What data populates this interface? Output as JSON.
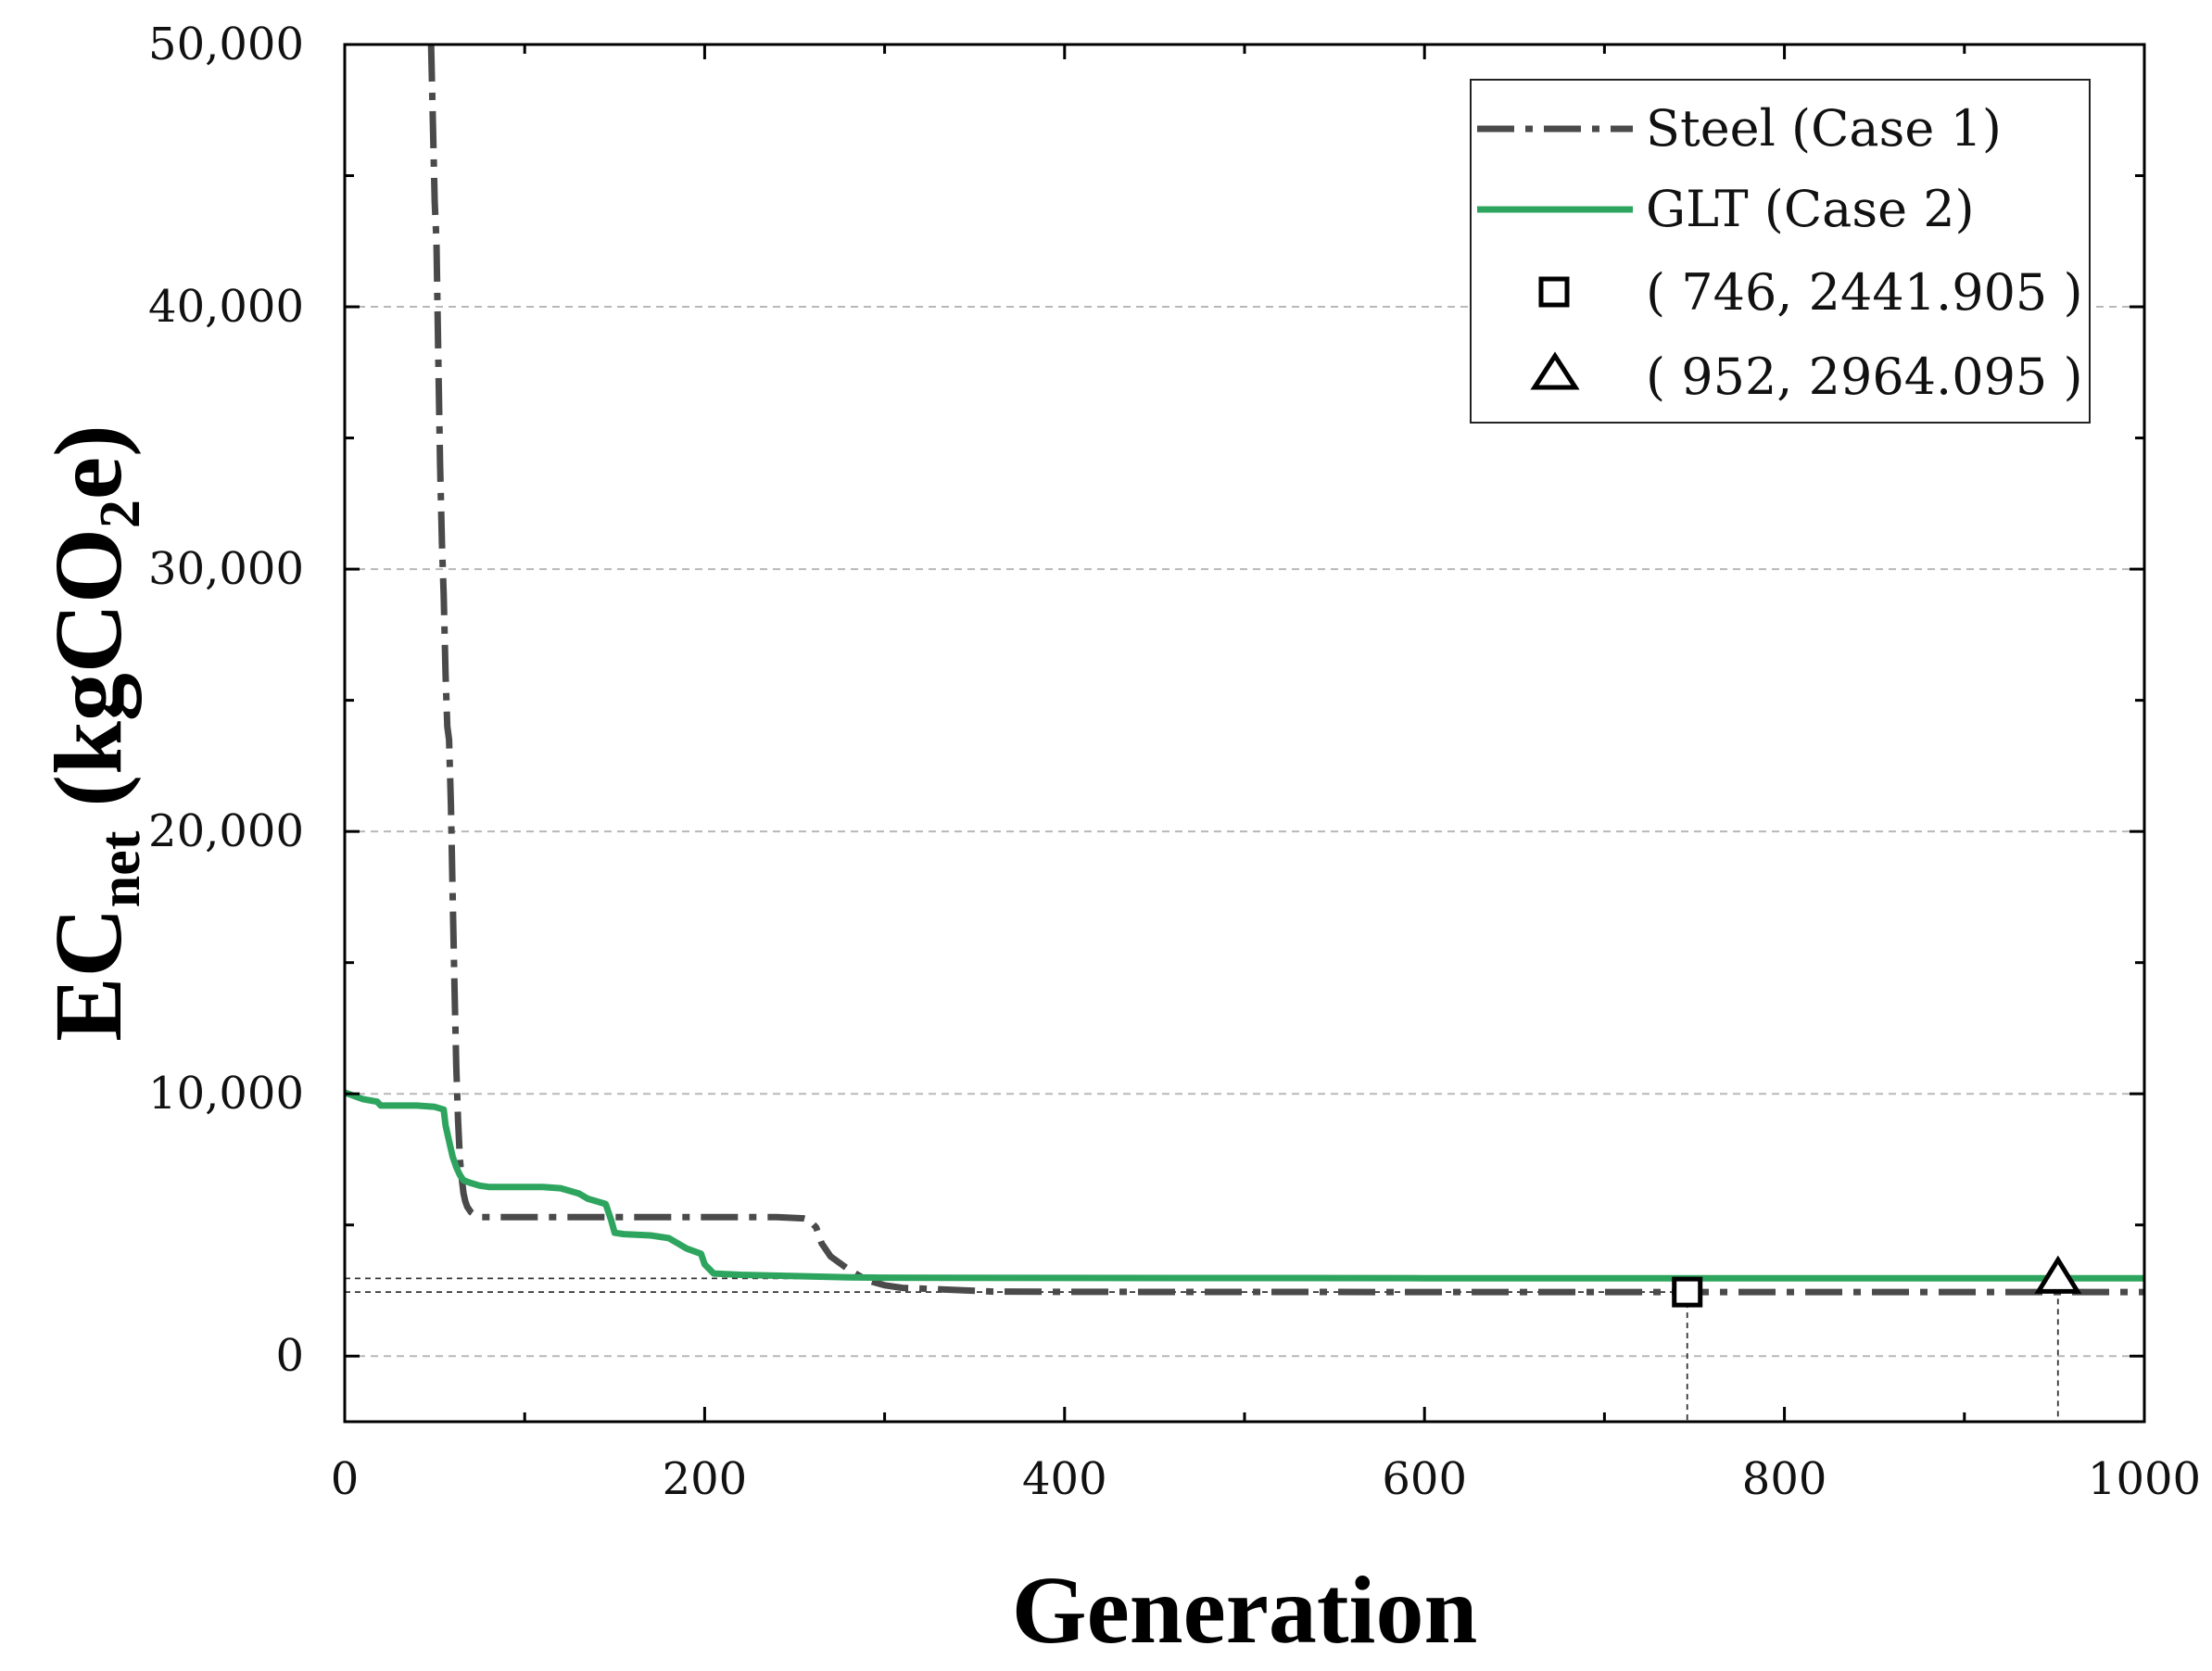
{
  "chart_data": {
    "type": "line",
    "xlabel": "Generation",
    "ylabel_main": "EC",
    "ylabel_sub": "net",
    "ylabel_unit_pre": " (kgCO",
    "ylabel_unit_sub": "2",
    "ylabel_unit_post": "e)",
    "xlim": [
      0,
      1000
    ],
    "ylim": [
      -2500,
      50000
    ],
    "x_ticks": [
      0,
      200,
      400,
      600,
      800,
      1000
    ],
    "x_tick_labels": [
      "0",
      "200",
      "400",
      "600",
      "800",
      "1000"
    ],
    "y_ticks": [
      0,
      10000,
      20000,
      30000,
      40000,
      50000
    ],
    "y_tick_labels": [
      "0",
      "10,000",
      "20,000",
      "30,000",
      "40,000",
      "50,000"
    ],
    "grid": "horizontal-dashed",
    "legend_position": "top-right",
    "series": [
      {
        "name": "Steel (Case 1)",
        "style": "dash-dot",
        "color": "#4a4a4a",
        "x": [
          48,
          50,
          51,
          52,
          53,
          54,
          55,
          56,
          57,
          58,
          59,
          60,
          61,
          62,
          63,
          64,
          65,
          66,
          67,
          68,
          70,
          72,
          75,
          80,
          100,
          150,
          200,
          240,
          255,
          258,
          262,
          265,
          270,
          280,
          290,
          300,
          310,
          330,
          360,
          400,
          500,
          600,
          700,
          746,
          800,
          900,
          1000
        ],
        "values": [
          50000,
          44000,
          42500,
          38000,
          34000,
          31000,
          29000,
          26000,
          24000,
          23500,
          21000,
          17500,
          14000,
          11000,
          9000,
          7500,
          6800,
          6200,
          5900,
          5700,
          5500,
          5400,
          5300,
          5300,
          5300,
          5300,
          5300,
          5300,
          5250,
          5200,
          4900,
          4300,
          3800,
          3300,
          2900,
          2700,
          2600,
          2550,
          2460,
          2450,
          2445,
          2443,
          2442,
          2441.905,
          2441.905,
          2441.905,
          2441.905
        ]
      },
      {
        "name": "GLT (Case 2)",
        "style": "solid",
        "color": "#2ea55f",
        "x": [
          0,
          10,
          18,
          20,
          30,
          40,
          50,
          55,
          56,
          58,
          60,
          62,
          64,
          66,
          70,
          75,
          80,
          90,
          100,
          110,
          120,
          130,
          135,
          145,
          148,
          150,
          155,
          170,
          180,
          185,
          190,
          198,
          200,
          205,
          220,
          250,
          280,
          300,
          400,
          500,
          600,
          700,
          800,
          900,
          952,
          1000
        ],
        "values": [
          10050,
          9800,
          9700,
          9550,
          9550,
          9550,
          9500,
          9400,
          8800,
          8200,
          7600,
          7200,
          6900,
          6700,
          6600,
          6500,
          6450,
          6450,
          6450,
          6450,
          6400,
          6200,
          6000,
          5800,
          5200,
          4700,
          4650,
          4600,
          4500,
          4300,
          4100,
          3900,
          3500,
          3150,
          3100,
          3050,
          3000,
          2990,
          2980,
          2975,
          2970,
          2968,
          2966,
          2965,
          2964.095,
          2964.095
        ]
      }
    ],
    "markers": [
      {
        "label": "( 746, 2441.905 )",
        "x": 746,
        "y": 2441.905,
        "shape": "square"
      },
      {
        "label": "( 952, 2964.095 )",
        "x": 952,
        "y": 2964.095,
        "shape": "triangle"
      }
    ]
  }
}
